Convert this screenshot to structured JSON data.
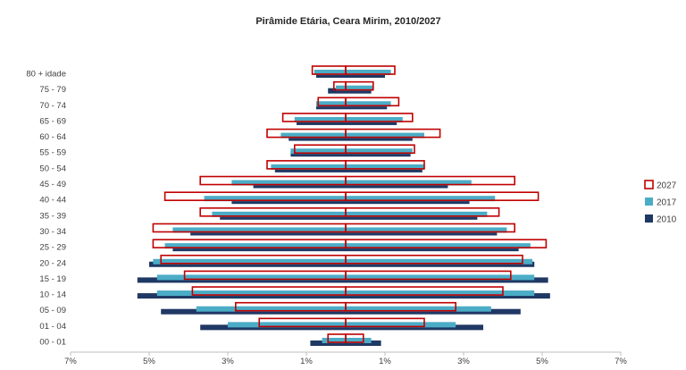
{
  "chart_data": {
    "type": "bar",
    "orientation": "horizontal-diverging",
    "title": "Pirâmide Etária, Ceara Mirim, 2010/2027",
    "xlabel": "",
    "ylabel": "",
    "xlim": [
      -7,
      7
    ],
    "x_tick_values": [
      -7,
      -5,
      -3,
      -1,
      1,
      3,
      5,
      7
    ],
    "x_tick_labels": [
      "7%",
      "5%",
      "3%",
      "1%",
      "1%",
      "3%",
      "5%",
      "7%"
    ],
    "grid": false,
    "legend_position": "right",
    "categories": [
      "00 - 01",
      "01 - 04",
      "05 - 09",
      "10 - 14",
      "15 - 19",
      "20 - 24",
      "25 - 29",
      "30 - 34",
      "35 - 39",
      "40 - 44",
      "45 - 49",
      "50 - 54",
      "55 - 59",
      "60 - 64",
      "65 - 69",
      "70 - 74",
      "75 - 79",
      "80 + idade"
    ],
    "series": [
      {
        "name": "2027",
        "style": "outline",
        "color": "#c00000",
        "left": [
          -0.45,
          -2.2,
          -2.8,
          -3.9,
          -4.1,
          -4.7,
          -4.9,
          -4.9,
          -3.7,
          -4.6,
          -3.7,
          -2.0,
          -1.3,
          -2.0,
          -1.6,
          -0.7,
          -0.3,
          -0.85
        ],
        "right": [
          0.45,
          2.0,
          2.8,
          4.0,
          4.2,
          4.5,
          5.1,
          4.3,
          3.9,
          4.9,
          4.3,
          2.0,
          1.75,
          2.4,
          1.7,
          1.35,
          0.7,
          1.25
        ]
      },
      {
        "name": "2017",
        "style": "fill",
        "color": "#4bacc6",
        "left": [
          -0.6,
          -3.0,
          -3.8,
          -4.8,
          -4.8,
          -4.9,
          -4.6,
          -4.4,
          -3.4,
          -3.6,
          -2.9,
          -1.9,
          -1.4,
          -1.65,
          -1.3,
          -0.75,
          -0.25,
          -0.8
        ],
        "right": [
          0.65,
          2.8,
          3.7,
          4.8,
          4.8,
          4.75,
          4.7,
          4.1,
          3.6,
          3.8,
          3.2,
          2.0,
          1.7,
          2.0,
          1.45,
          1.15,
          0.7,
          1.15
        ]
      },
      {
        "name": "2010",
        "style": "fill",
        "color": "#1f3864",
        "left": [
          -0.9,
          -3.7,
          -4.7,
          -5.3,
          -5.3,
          -5.0,
          -4.4,
          -3.95,
          -3.2,
          -2.9,
          -2.35,
          -1.8,
          -1.4,
          -1.45,
          -1.25,
          -0.75,
          -0.45,
          -0.75
        ],
        "right": [
          0.9,
          3.5,
          4.45,
          5.2,
          5.15,
          4.8,
          4.4,
          3.85,
          3.35,
          3.15,
          2.6,
          1.95,
          1.65,
          1.7,
          1.3,
          1.05,
          0.65,
          1.0
        ]
      }
    ]
  }
}
